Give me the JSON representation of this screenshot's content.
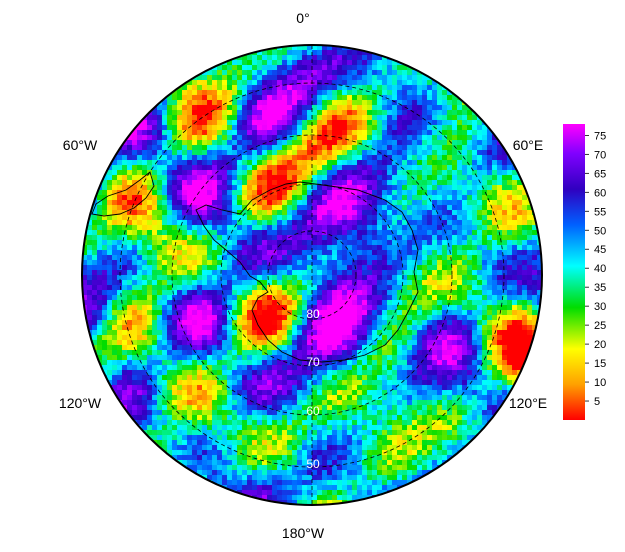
{
  "map": {
    "projection": "south-polar-stereographic",
    "longitude_labels": [
      {
        "key": "lon-0",
        "text": "0°"
      },
      {
        "key": "lon-60e",
        "text": "60°E"
      },
      {
        "key": "lon-120e",
        "text": "120°E"
      },
      {
        "key": "lon-180w",
        "text": "180°W"
      },
      {
        "key": "lon-120w",
        "text": "120°W"
      },
      {
        "key": "lon-60w",
        "text": "60°W"
      }
    ],
    "latitude_labels": [
      "80",
      "70",
      "60",
      "50"
    ],
    "colorbar": {
      "ticks": [
        75,
        70,
        65,
        60,
        55,
        50,
        45,
        40,
        35,
        30,
        25,
        20,
        15,
        10,
        5
      ],
      "min": 0,
      "max": 78,
      "colormap": [
        "#ff0000",
        "#ffa000",
        "#ffff00",
        "#00dd00",
        "#00ffff",
        "#0060ff",
        "#3000c0",
        "#8000ff",
        "#ff00ff"
      ]
    }
  }
}
